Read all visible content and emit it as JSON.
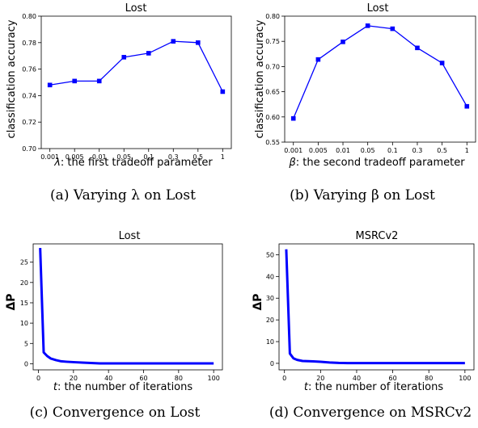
{
  "chart_data": [
    {
      "type": "line",
      "title": "Lost",
      "ylabel": "classification accuracy",
      "xlabel_var": "λ",
      "xlabel_rest": ": the first tradeoff parameter",
      "categories": [
        "0.001",
        "0.005",
        "0.01",
        "0.05",
        "0.1",
        "0.3",
        "0.5",
        "1"
      ],
      "values": [
        0.748,
        0.751,
        0.751,
        0.769,
        0.772,
        0.781,
        0.78,
        0.743
      ],
      "ylim": [
        0.7,
        0.8
      ],
      "yticks": [
        "0.70",
        "0.72",
        "0.74",
        "0.76",
        "0.78",
        "0.80"
      ],
      "color": "#0000ff",
      "marker": "square",
      "caption": "(a) Varying λ on Lost"
    },
    {
      "type": "line",
      "title": "Lost",
      "ylabel": "classification accuracy",
      "xlabel_var": "β",
      "xlabel_rest": ": the second tradeoff parameter",
      "categories": [
        "0.001",
        "0.005",
        "0.01",
        "0.05",
        "0.1",
        "0.3",
        "0.5",
        "1"
      ],
      "values": [
        0.597,
        0.714,
        0.749,
        0.781,
        0.775,
        0.737,
        0.707,
        0.621
      ],
      "ylim": [
        0.55,
        0.8
      ],
      "yticks": [
        "0.55",
        "0.60",
        "0.65",
        "0.70",
        "0.75",
        "0.80"
      ],
      "color": "#0000ff",
      "marker": "square",
      "caption": "(b) Varying β on Lost"
    },
    {
      "type": "line",
      "title": "Lost",
      "ylabel": "ΔP",
      "xlabel_var": "t",
      "xlabel_rest": ": the number of iterations",
      "x": [
        1,
        3,
        5,
        7,
        10,
        13,
        16,
        20,
        25,
        30,
        35,
        40,
        50,
        60,
        70,
        80,
        90,
        100
      ],
      "values": [
        28.5,
        2.8,
        1.9,
        1.3,
        0.9,
        0.6,
        0.5,
        0.4,
        0.3,
        0.2,
        0.1,
        0.1,
        0.1,
        0.1,
        0.1,
        0.1,
        0.1,
        0.1
      ],
      "xlim": [
        -3,
        105
      ],
      "ylim": [
        -1.5,
        29.5
      ],
      "xticks": [
        "0",
        "20",
        "40",
        "60",
        "80",
        "100"
      ],
      "yticks": [
        "0",
        "5",
        "10",
        "15",
        "20",
        "25"
      ],
      "color": "#0000ff",
      "caption": "(c) Convergence on Lost"
    },
    {
      "type": "line",
      "title": "MSRCv2",
      "ylabel": "ΔP",
      "xlabel_var": "t",
      "xlabel_rest": ": the number of iterations",
      "x": [
        1,
        3,
        5,
        7,
        10,
        13,
        16,
        20,
        25,
        30,
        35,
        40,
        50,
        60,
        70,
        80,
        90,
        100
      ],
      "values": [
        52.5,
        4.5,
        2.3,
        1.6,
        1.1,
        1.0,
        0.9,
        0.7,
        0.4,
        0.2,
        0.1,
        0.1,
        0.1,
        0.1,
        0.1,
        0.1,
        0.1,
        0.1
      ],
      "xlim": [
        -3,
        105
      ],
      "ylim": [
        -3,
        55
      ],
      "xticks": [
        "0",
        "20",
        "40",
        "60",
        "80",
        "100"
      ],
      "yticks": [
        "0",
        "10",
        "20",
        "30",
        "40",
        "50"
      ],
      "color": "#0000ff",
      "caption": "(d) Convergence on MSRCv2"
    }
  ]
}
